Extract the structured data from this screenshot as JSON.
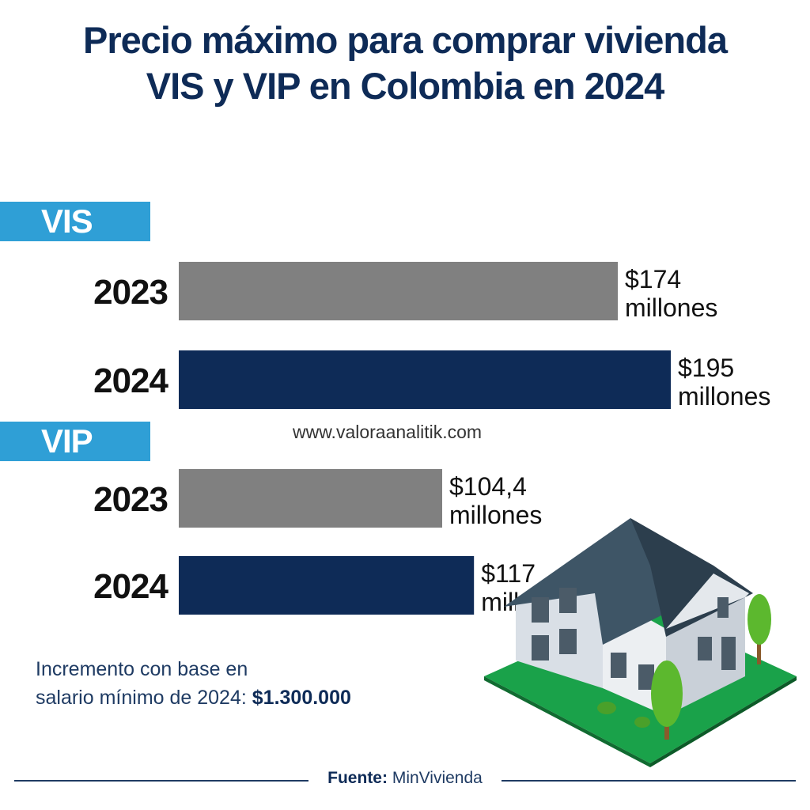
{
  "title_line1": "Precio máximo para comprar vivienda",
  "title_line2": "VIS y VIP en Colombia en 2024",
  "watermark": "www.valoraanalitik.com",
  "footnote": {
    "line1": "Incremento con base en",
    "line2_prefix": "salario mínimo de 2024: ",
    "line2_value": "$1.300.000"
  },
  "source": {
    "label": "Fuente:",
    "value": "MinVivienda"
  },
  "colors": {
    "title": "#0e2b57",
    "tab": "#2f9fd6",
    "bar_2023": "#808080",
    "bar_2024": "#0e2b57"
  },
  "chart_data": {
    "type": "bar",
    "orientation": "horizontal",
    "groups": [
      {
        "name": "VIS",
        "bars": [
          {
            "category": "2023",
            "value": 174,
            "label_line1": "$174",
            "label_line2": "millones",
            "color": "#808080"
          },
          {
            "category": "2024",
            "value": 195,
            "label_line1": "$195",
            "label_line2": "millones",
            "color": "#0e2b57"
          }
        ]
      },
      {
        "name": "VIP",
        "bars": [
          {
            "category": "2023",
            "value": 104.4,
            "label_line1": "$104,4",
            "label_line2": "millones",
            "color": "#808080"
          },
          {
            "category": "2024",
            "value": 117,
            "label_line1": "$117",
            "label_line2": "millones",
            "color": "#0e2b57"
          }
        ]
      }
    ],
    "unit": "millones de pesos",
    "xlim": [
      0,
      195
    ]
  }
}
